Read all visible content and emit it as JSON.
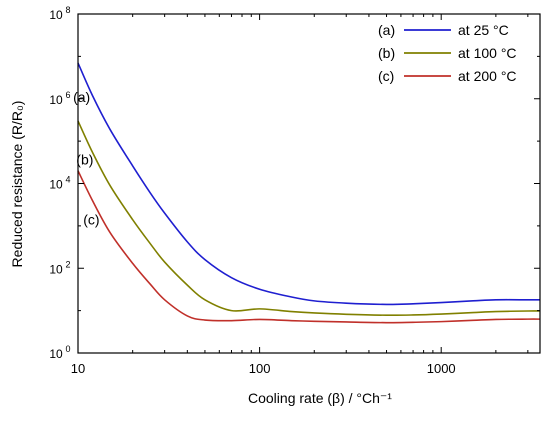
{
  "chart_data": {
    "type": "line",
    "title": "",
    "xlabel": "Cooling rate (β) / °Ch⁻¹",
    "ylabel": "Reduced resistance (R/R₀)",
    "xscale": "log",
    "yscale": "log",
    "xlim": [
      10,
      3500
    ],
    "ylim": [
      1,
      100000000
    ],
    "grid": false,
    "legend_position": "top-right",
    "x_ticks": [
      {
        "value": 10,
        "label": "10"
      },
      {
        "value": 100,
        "label": "100"
      },
      {
        "value": 1000,
        "label": "1000"
      }
    ],
    "y_ticks": [
      {
        "value": 1,
        "label": "10",
        "exp": "0"
      },
      {
        "value": 100,
        "label": "10",
        "exp": "2"
      },
      {
        "value": 10000,
        "label": "10",
        "exp": "4"
      },
      {
        "value": 1000000,
        "label": "10",
        "exp": "6"
      },
      {
        "value": 100000000,
        "label": "10",
        "exp": "8"
      }
    ],
    "series": [
      {
        "legend_tag": "(a)",
        "legend_text": "at 25 °C",
        "curve_label": "(a)",
        "color": "#1f1fd0",
        "x": [
          10,
          12,
          15,
          20,
          25,
          30,
          40,
          50,
          70,
          100,
          150,
          200,
          300,
          500,
          700,
          1000,
          1500,
          2000,
          3000,
          3500
        ],
        "y": [
          7000000,
          1200000,
          190000,
          26000,
          6000,
          2000,
          420,
          160,
          60,
          32,
          21,
          17,
          15,
          14,
          14.5,
          15.5,
          17,
          18,
          18,
          18
        ]
      },
      {
        "legend_tag": "(b)",
        "legend_text": "at 100 °C",
        "curve_label": "(b)",
        "color": "#808000",
        "x": [
          10,
          12,
          15,
          20,
          25,
          30,
          40,
          50,
          70,
          100,
          150,
          200,
          300,
          500,
          700,
          1000,
          1500,
          2000,
          3000,
          3500
        ],
        "y": [
          300000,
          55000,
          9000,
          1400,
          380,
          140,
          40,
          18,
          10,
          11,
          9.5,
          8.8,
          8.2,
          7.8,
          7.9,
          8.3,
          9.0,
          9.5,
          9.8,
          9.8
        ]
      },
      {
        "legend_tag": "(c)",
        "legend_text": "at 200 °C",
        "curve_label": "(c)",
        "color": "#c0302a",
        "x": [
          10,
          12,
          15,
          20,
          25,
          30,
          40,
          50,
          70,
          100,
          150,
          200,
          300,
          500,
          700,
          1000,
          1500,
          2000,
          3000,
          3500
        ],
        "y": [
          20000,
          4000,
          700,
          130,
          42,
          18,
          7.5,
          6.0,
          5.8,
          6.2,
          5.8,
          5.6,
          5.4,
          5.2,
          5.3,
          5.5,
          5.9,
          6.2,
          6.3,
          6.3
        ]
      }
    ]
  }
}
